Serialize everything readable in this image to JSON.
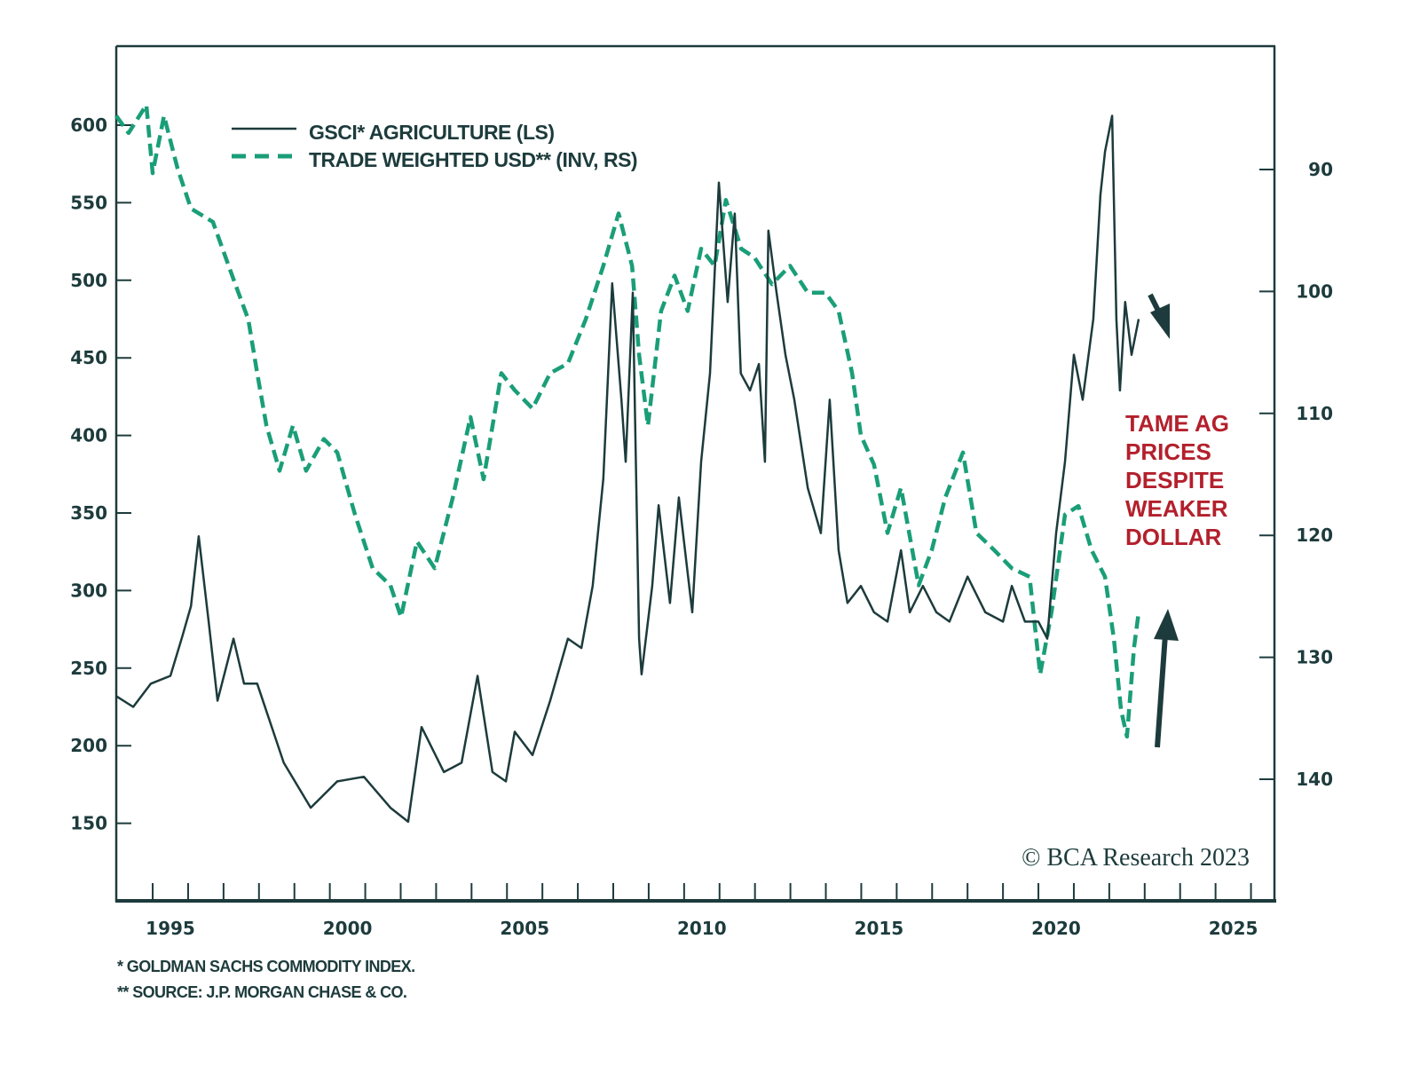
{
  "chart_data": {
    "type": "line",
    "title": "",
    "xlabel": "",
    "xlim": [
      1993.47,
      2026.16
    ],
    "x_ticks": [
      1995,
      2000,
      2005,
      2010,
      2015,
      2020,
      2025
    ],
    "left_axis": {
      "label": "",
      "ylim": [
        100,
        650
      ],
      "ticks": [
        150,
        200,
        250,
        300,
        350,
        400,
        450,
        500,
        550,
        600
      ]
    },
    "right_axis": {
      "label": "",
      "inverted": true,
      "ticks": [
        90,
        100,
        110,
        120,
        130,
        140
      ]
    },
    "grid": false,
    "legend_position": "top-left",
    "series": [
      {
        "name": "GSCI* AGRICULTURE (LS)",
        "axis": "left",
        "style": "solid",
        "color": "#1d3b3c",
        "x": [
          1993.47,
          1993.95,
          1994.45,
          1995.0,
          1995.33,
          1995.58,
          1995.8,
          1996.08,
          1996.33,
          1996.78,
          1997.08,
          1997.45,
          1998.2,
          1998.96,
          1999.71,
          2000.46,
          2001.21,
          2001.71,
          2002.09,
          2002.72,
          2003.22,
          2003.67,
          2004.09,
          2004.47,
          2004.72,
          2005.22,
          2005.72,
          2006.22,
          2006.6,
          2006.92,
          2007.22,
          2007.47,
          2007.73,
          2007.85,
          2008.05,
          2008.23,
          2008.3,
          2008.6,
          2008.78,
          2009.1,
          2009.35,
          2009.73,
          2009.98,
          2010.23,
          2010.48,
          2010.73,
          2010.93,
          2011.1,
          2011.36,
          2011.61,
          2011.78,
          2011.88,
          2012.11,
          2012.36,
          2012.61,
          2012.99,
          2013.36,
          2013.61,
          2013.86,
          2014.11,
          2014.49,
          2014.86,
          2015.24,
          2015.62,
          2015.87,
          2016.24,
          2016.62,
          2016.99,
          2017.5,
          2018.0,
          2018.5,
          2018.75,
          2019.12,
          2019.5,
          2019.75,
          2020.0,
          2020.25,
          2020.5,
          2020.75,
          2021.05,
          2021.25,
          2021.38,
          2021.58,
          2021.7,
          2021.8,
          2021.95,
          2022.13,
          2022.33
        ],
        "values": [
          232,
          225,
          240,
          245,
          270,
          290,
          335,
          280,
          229,
          269,
          240,
          240,
          189,
          160,
          177,
          180,
          160,
          151,
          212,
          183,
          189,
          245,
          183,
          177,
          209,
          194,
          229,
          269,
          263,
          303,
          372,
          498,
          423,
          383,
          492,
          269,
          246,
          303,
          355,
          292,
          360,
          286,
          383,
          440,
          563,
          486,
          543,
          440,
          429,
          446,
          383,
          532,
          492,
          452,
          423,
          366,
          337,
          423,
          326,
          292,
          303,
          286,
          280,
          326,
          286,
          303,
          286,
          280,
          309,
          286,
          280,
          303,
          280,
          280,
          269,
          337,
          383,
          452,
          423,
          475,
          555,
          583,
          606,
          475,
          429,
          486,
          452,
          475
        ]
      },
      {
        "name": "TRADE WEIGHTED USD** (INV, RS)",
        "axis": "right",
        "style": "dashed",
        "color": "#1a9e78",
        "x": [
          1993.47,
          1993.82,
          1994.32,
          1994.5,
          1994.82,
          1995.2,
          1995.58,
          1996.2,
          1996.83,
          1997.2,
          1997.45,
          1997.71,
          1998.08,
          1998.46,
          1998.83,
          1999.33,
          1999.71,
          2000.21,
          2000.71,
          2001.21,
          2001.51,
          2001.96,
          2002.46,
          2002.97,
          2003.47,
          2003.84,
          2004.34,
          2004.72,
          2005.22,
          2005.72,
          2006.22,
          2006.72,
          2007.22,
          2007.65,
          2008.03,
          2008.23,
          2008.48,
          2008.85,
          2009.23,
          2009.6,
          2009.98,
          2010.36,
          2010.68,
          2011.11,
          2011.48,
          2011.98,
          2012.49,
          2012.99,
          2013.49,
          2013.86,
          2014.24,
          2014.49,
          2014.86,
          2015.24,
          2015.62,
          2016.12,
          2016.49,
          2016.87,
          2017.37,
          2017.75,
          2018.25,
          2018.75,
          2019.25,
          2019.55,
          2019.87,
          2020.25,
          2020.63,
          2021.0,
          2021.38,
          2021.63,
          2021.83,
          2022.0,
          2022.2,
          2022.33
        ],
        "values": [
          85.6,
          87.0,
          84.7,
          90.3,
          85.6,
          89.9,
          93.2,
          94.3,
          99.4,
          102.3,
          106.7,
          111.0,
          114.7,
          111.0,
          114.7,
          112.1,
          113.2,
          118.3,
          122.7,
          124.1,
          126.7,
          120.5,
          122.7,
          116.9,
          110.3,
          115.4,
          106.7,
          108.1,
          109.6,
          106.7,
          105.9,
          102.3,
          97.9,
          93.6,
          97.9,
          105.2,
          111.0,
          101.6,
          98.7,
          101.6,
          96.5,
          97.9,
          92.5,
          96.5,
          97.2,
          99.4,
          97.9,
          100.1,
          100.1,
          101.6,
          106.7,
          111.8,
          114.2,
          119.8,
          116.1,
          124.1,
          121.2,
          116.9,
          113.2,
          119.8,
          121.2,
          122.7,
          123.4,
          131.4,
          126.3,
          118.3,
          117.6,
          121.2,
          123.4,
          128.5,
          134.3,
          136.5,
          129.2,
          126.3
        ]
      }
    ],
    "annotation": [
      "TAME AG",
      "PRICES",
      "DESPITE",
      "WEAKER",
      "DOLLAR"
    ],
    "copyright": "© BCA Research 2023",
    "footnotes": [
      "*  GOLDMAN SACHS COMMODITY INDEX.",
      "** SOURCE: J.P. MORGAN CHASE & CO."
    ]
  }
}
